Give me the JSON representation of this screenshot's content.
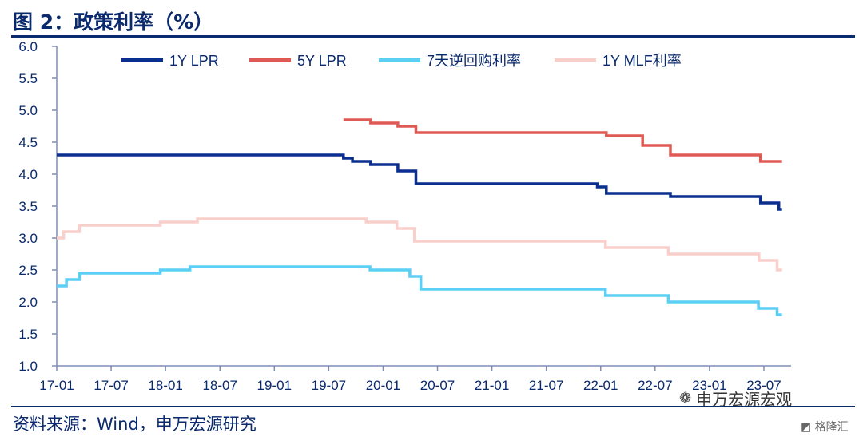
{
  "header": {
    "title": "图 2：政策利率（%）"
  },
  "footer": {
    "source": "资料来源：Wind，申万宏源研究"
  },
  "watermark": {
    "text": "申万宏源宏观",
    "logo_text": "格隆汇"
  },
  "chart_data": {
    "type": "line",
    "title": "图 2：政策利率（%）",
    "xlabel": "",
    "ylabel": "",
    "ylim": [
      1.0,
      6.0
    ],
    "yticks": [
      "6.0",
      "5.5",
      "5.0",
      "4.5",
      "4.0",
      "3.5",
      "3.0",
      "2.5",
      "2.0",
      "1.5",
      "1.0"
    ],
    "xlim": [
      "2017-01",
      "2023-10"
    ],
    "xticks": [
      "17-01",
      "17-07",
      "18-01",
      "18-07",
      "19-01",
      "19-07",
      "20-01",
      "20-07",
      "21-01",
      "21-07",
      "22-01",
      "22-07",
      "23-01",
      "23-07"
    ],
    "grid": false,
    "legend_position": "top",
    "series": [
      {
        "name": "1Y LPR",
        "color": "#0b2f8f",
        "steps": [
          [
            "2017-01-01",
            4.3
          ],
          [
            "2019-08-20",
            4.25
          ],
          [
            "2019-09-20",
            4.2
          ],
          [
            "2019-11-20",
            4.15
          ],
          [
            "2020-02-20",
            4.05
          ],
          [
            "2020-04-20",
            3.85
          ],
          [
            "2021-12-20",
            3.8
          ],
          [
            "2022-01-20",
            3.7
          ],
          [
            "2022-08-22",
            3.65
          ],
          [
            "2023-06-20",
            3.55
          ],
          [
            "2023-08-21",
            3.45
          ]
        ],
        "end": "2023-09-01"
      },
      {
        "name": "5Y LPR",
        "color": "#e05a55",
        "steps": [
          [
            "2019-08-20",
            4.85
          ],
          [
            "2019-11-20",
            4.8
          ],
          [
            "2020-02-20",
            4.75
          ],
          [
            "2020-04-20",
            4.65
          ],
          [
            "2022-01-20",
            4.6
          ],
          [
            "2022-05-20",
            4.45
          ],
          [
            "2022-08-22",
            4.3
          ],
          [
            "2023-06-20",
            4.2
          ]
        ],
        "end": "2023-09-01"
      },
      {
        "name": "7天逆回购利率",
        "color": "#5ccff5",
        "steps": [
          [
            "2017-01-01",
            2.25
          ],
          [
            "2017-02-03",
            2.35
          ],
          [
            "2017-03-16",
            2.45
          ],
          [
            "2017-12-14",
            2.5
          ],
          [
            "2018-03-22",
            2.55
          ],
          [
            "2019-11-18",
            2.5
          ],
          [
            "2020-03-30",
            2.4
          ],
          [
            "2020-05-06",
            2.2
          ],
          [
            "2022-01-17",
            2.1
          ],
          [
            "2022-08-15",
            2.0
          ],
          [
            "2023-06-13",
            1.9
          ],
          [
            "2023-08-15",
            1.8
          ]
        ],
        "end": "2023-09-01"
      },
      {
        "name": "1Y MLF利率",
        "color": "#f9cfcc",
        "steps": [
          [
            "2017-01-01",
            3.0
          ],
          [
            "2017-01-24",
            3.1
          ],
          [
            "2017-03-16",
            3.2
          ],
          [
            "2017-12-14",
            3.25
          ],
          [
            "2018-04-17",
            3.3
          ],
          [
            "2019-11-05",
            3.25
          ],
          [
            "2020-02-17",
            3.15
          ],
          [
            "2020-04-15",
            2.95
          ],
          [
            "2022-01-17",
            2.85
          ],
          [
            "2022-08-15",
            2.75
          ],
          [
            "2023-06-15",
            2.65
          ],
          [
            "2023-08-15",
            2.5
          ]
        ],
        "end": "2023-09-01"
      }
    ]
  }
}
